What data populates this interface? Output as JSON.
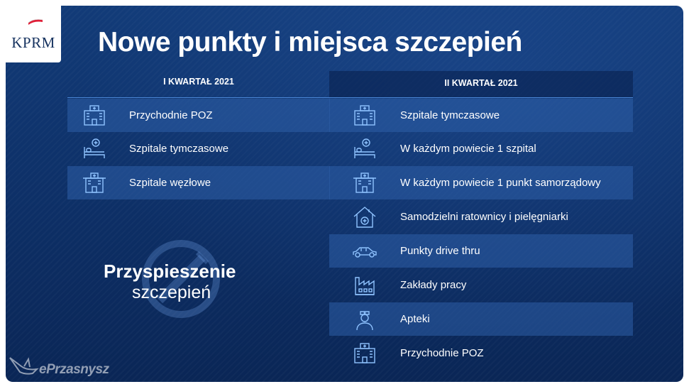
{
  "logo": {
    "text": "KPRM"
  },
  "title": "Nowe punkty i miejsca szczepień",
  "left_column": {
    "header": "I KWARTAŁ 2021",
    "items": [
      {
        "label": "Przychodnie POZ",
        "icon": "clinic-building-icon"
      },
      {
        "label": "Szpitale tymczasowe",
        "icon": "hospital-bed-icon"
      },
      {
        "label": "Szpitale węzłowe",
        "icon": "hospital-building-icon"
      }
    ]
  },
  "right_column": {
    "header": "II KWARTAŁ 2021",
    "items": [
      {
        "label": "Szpitale tymczasowe",
        "icon": "clinic-building-icon"
      },
      {
        "label": "W każdym powiecie 1 szpital",
        "icon": "hospital-bed-icon"
      },
      {
        "label": "W każdym powiecie 1 punkt samorządowy",
        "icon": "hospital-building-icon"
      },
      {
        "label": "Samodzielni ratownicy i pielęgniarki",
        "icon": "medical-house-icon"
      },
      {
        "label": "Punkty drive thru",
        "icon": "car-icon"
      },
      {
        "label": "Zakłady pracy",
        "icon": "factory-icon"
      },
      {
        "label": "Apteki",
        "icon": "pharmacist-icon"
      },
      {
        "label": "Przychodnie POZ",
        "icon": "clinic-building-icon"
      }
    ]
  },
  "promo": {
    "line1": "Przyspieszenie",
    "line2": "szczepień"
  },
  "watermark": {
    "text": "ePrzasnysz"
  },
  "colors": {
    "background": "#0d2f66",
    "row_highlight": "#2e5ea8",
    "icon_stroke": "#8fc3ff",
    "text": "#ffffff"
  }
}
